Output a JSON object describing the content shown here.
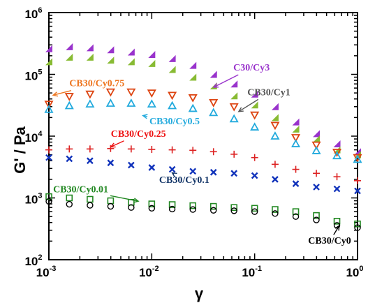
{
  "chart_data": {
    "type": "scatter",
    "title": "",
    "xlabel": "γ",
    "ylabel": "G' / Pa",
    "xscale": "log",
    "yscale": "log",
    "xlim": [
      0.001,
      1
    ],
    "ylim": [
      100,
      1000000
    ],
    "grid": false,
    "legend": "none",
    "x_ticks": [
      {
        "base": "10",
        "exp": "-3"
      },
      {
        "base": "10",
        "exp": "-2"
      },
      {
        "base": "10",
        "exp": "-1"
      },
      {
        "base": "10",
        "exp": "0"
      }
    ],
    "y_ticks": [
      {
        "base": "10",
        "exp": "2"
      },
      {
        "base": "10",
        "exp": "3"
      },
      {
        "base": "10",
        "exp": "4"
      },
      {
        "base": "10",
        "exp": "5"
      },
      {
        "base": "10",
        "exp": "6"
      }
    ],
    "x": [
      0.001,
      0.00158,
      0.00251,
      0.00398,
      0.00631,
      0.01,
      0.0158,
      0.0251,
      0.0398,
      0.0631,
      0.1,
      0.158,
      0.251,
      0.398,
      0.631,
      1.0
    ],
    "series": [
      {
        "label": "C30/Cy3",
        "marker": "tri-right",
        "color": "#9933cc",
        "values": [
          260000,
          280000,
          270000,
          250000,
          230000,
          210000,
          180000,
          140000,
          100000,
          70000,
          48000,
          30000,
          17000,
          11000,
          7500,
          5600
        ]
      },
      {
        "label": "CB30/Cy1",
        "marker": "tri-right",
        "color": "#88bb33",
        "values": [
          160000,
          190000,
          190000,
          170000,
          160000,
          150000,
          120000,
          90000,
          65000,
          45000,
          32000,
          20000,
          13000,
          9000,
          6000,
          5000
        ]
      },
      {
        "label": "CB30/Cy0.75",
        "marker": "tri-down",
        "color": "#dd4411",
        "values": [
          33000,
          44000,
          48000,
          52000,
          52000,
          50000,
          46000,
          42000,
          35000,
          30000,
          22000,
          15000,
          9500,
          7200,
          5500,
          4500
        ]
      },
      {
        "label": "CB30/Cy0.5",
        "marker": "tri-up",
        "color": "#22aadd",
        "values": [
          27000,
          31000,
          33000,
          34000,
          34000,
          33000,
          31000,
          28000,
          24000,
          19000,
          14000,
          10000,
          7500,
          5800,
          4800,
          4200
        ]
      },
      {
        "label": "CB30/Cy0.25",
        "marker": "plus",
        "color": "#dd2222",
        "values": [
          6000,
          6200,
          6200,
          6300,
          6200,
          6100,
          6000,
          5900,
          5600,
          5100,
          4500,
          3500,
          2900,
          2500,
          2200,
          1900
        ]
      },
      {
        "label": "CB30/Cy0.1",
        "marker": "x",
        "color": "#1133bb",
        "values": [
          4500,
          4300,
          4000,
          3700,
          3400,
          3100,
          2900,
          2700,
          2600,
          2500,
          2300,
          2000,
          1700,
          1500,
          1400,
          1300
        ]
      },
      {
        "label": "CB30/Cy0.01",
        "marker": "square",
        "color": "#228822",
        "values": [
          1050,
          1000,
          950,
          900,
          850,
          800,
          780,
          750,
          730,
          700,
          680,
          650,
          600,
          520,
          420,
          380
        ]
      },
      {
        "label": "CB30/Cy0",
        "marker": "circle",
        "color": "#000000",
        "values": [
          880,
          790,
          760,
          730,
          700,
          680,
          660,
          650,
          630,
          620,
          600,
          560,
          500,
          440,
          360,
          330
        ]
      }
    ],
    "annotations": [
      {
        "text": "C30/Cy3",
        "color": "#9933cc",
        "at": [
          0.062,
          115000
        ],
        "arrow_to": [
          0.04,
          62000
        ]
      },
      {
        "text": "CB30/Cy1",
        "color": "#555555",
        "at": [
          0.085,
          46000
        ],
        "arrow_to": [
          0.07,
          25000
        ]
      },
      {
        "text": "CB30/Cy0.75",
        "color": "#ee7722",
        "at": [
          0.00158,
          64000
        ],
        "arrow_to": [
          0.0011,
          46000
        ]
      },
      {
        "text": "CB30/Cy0.5",
        "color": "#22aadd",
        "at": [
          0.0095,
          15600
        ],
        "arrow_to": [
          0.0082,
          21500
        ]
      },
      {
        "text": "CB30/Cy0.25",
        "color": "#ee1111",
        "at": [
          0.004,
          9800
        ],
        "arrow_to": [
          0.004,
          6700
        ]
      },
      {
        "text": "CB30/Cy0.1",
        "color": "#113366",
        "at": [
          0.0118,
          1740
        ],
        "arrow_to": [
          0.0158,
          2550
        ]
      },
      {
        "text": "CB30/Cy0.01",
        "color": "#228822",
        "at": [
          0.0011,
          1230
        ],
        "arrow_to": [
          0.0074,
          885
        ]
      },
      {
        "text": "CB30/Cy0",
        "color": "#000000",
        "at": [
          0.331,
          181
        ],
        "arrow_to": [
          0.664,
          355
        ]
      }
    ]
  }
}
